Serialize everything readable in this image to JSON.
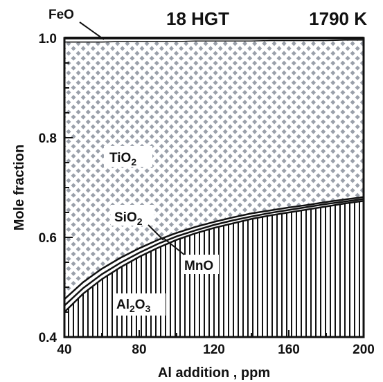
{
  "chart_data": {
    "type": "area",
    "title_left": "18 HGT",
    "title_right": "1790 K",
    "xlabel": "Al addition , ppm",
    "ylabel": "Mole fraction",
    "xlim": [
      40,
      200
    ],
    "ylim": [
      0.4,
      1.0
    ],
    "x_ticks": [
      "40",
      "80",
      "120",
      "160",
      "200"
    ],
    "y_ticks": [
      "0.4",
      "0.6",
      "0.8",
      "1.0"
    ],
    "x": [
      40,
      50,
      60,
      70,
      80,
      90,
      100,
      110,
      120,
      130,
      140,
      150,
      160,
      170,
      180,
      190,
      200
    ],
    "series": [
      {
        "name": "Al2O3",
        "label": "Al",
        "sub1": "2",
        "mid": "O",
        "sub2": "3",
        "values": [
          0.45,
          0.487,
          0.516,
          0.54,
          0.561,
          0.579,
          0.595,
          0.608,
          0.619,
          0.628,
          0.637,
          0.644,
          0.65,
          0.656,
          0.662,
          0.668,
          0.673
        ]
      },
      {
        "name": "MnO",
        "label": "MnO",
        "values": [
          0.463,
          0.498,
          0.526,
          0.549,
          0.569,
          0.587,
          0.602,
          0.614,
          0.625,
          0.634,
          0.642,
          0.649,
          0.655,
          0.661,
          0.667,
          0.672,
          0.677
        ]
      },
      {
        "name": "SiO2",
        "label": "SiO",
        "sub1": "2",
        "values": [
          0.476,
          0.51,
          0.537,
          0.559,
          0.578,
          0.595,
          0.609,
          0.621,
          0.631,
          0.64,
          0.648,
          0.654,
          0.66,
          0.665,
          0.671,
          0.676,
          0.681
        ]
      },
      {
        "name": "TiO2",
        "label": "TiO",
        "sub1": "2",
        "values": [
          0.992,
          0.992,
          0.992,
          0.993,
          0.993,
          0.993,
          0.993,
          0.994,
          0.994,
          0.994,
          0.994,
          0.995,
          0.995,
          0.995,
          0.995,
          0.996,
          0.996
        ]
      },
      {
        "name": "FeO",
        "label": "FeO",
        "values": [
          1.0,
          1.0,
          1.0,
          1.0,
          1.0,
          1.0,
          1.0,
          1.0,
          1.0,
          1.0,
          1.0,
          1.0,
          1.0,
          1.0,
          1.0,
          1.0,
          1.0
        ]
      }
    ],
    "grid": false,
    "colors": {
      "axis": "#111111",
      "tio2_pattern": "#9aa0aa",
      "background": "#ffffff"
    }
  }
}
